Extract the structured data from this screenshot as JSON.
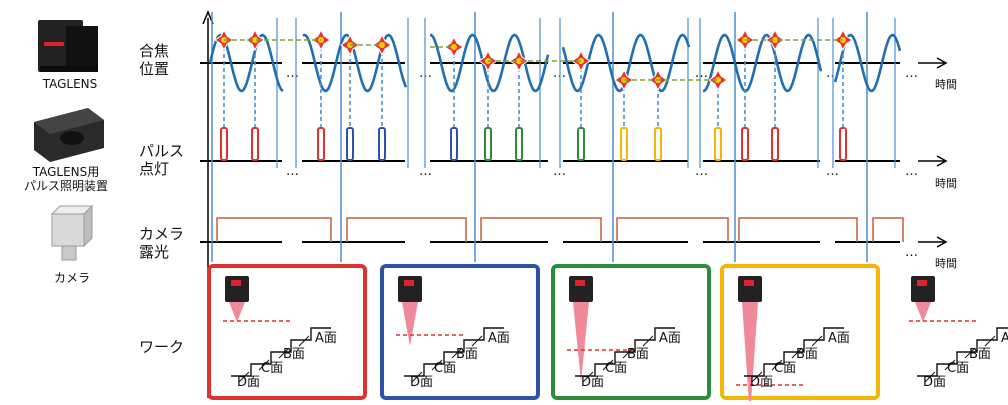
{
  "devices": [
    {
      "label": "TAGLENS",
      "icon": "taglens-lens-icon"
    },
    {
      "label": "TAGLENS用\nパルス照明装置",
      "icon": "pulse-illuminator-icon"
    },
    {
      "label": "カメラ",
      "icon": "camera-icon"
    }
  ],
  "rows": {
    "focus": "合焦\n位置",
    "pulse": "パルス\n点灯",
    "camera": "カメラ\n露光",
    "work": "ワーク"
  },
  "time_label": "時間",
  "ellipsis": "…",
  "colors": {
    "red": "#e03131",
    "blue": "#2f52a8",
    "green": "#2e8b3a",
    "yellow": "#f2b705",
    "sine": "#1f6fb2",
    "exposure": "#c0643a",
    "guide": "#4b8fd1",
    "dash": "#7aa33a"
  },
  "panels": [
    {
      "color": "red",
      "faces": [
        "A面",
        "B面",
        "C面",
        "D面"
      ]
    },
    {
      "color": "blue",
      "faces": [
        "A面",
        "B面",
        "C面",
        "D面"
      ]
    },
    {
      "color": "green",
      "faces": [
        "A面",
        "B面",
        "C面",
        "D面"
      ]
    },
    {
      "color": "yellow",
      "faces": [
        "A面",
        "B面",
        "C面",
        "D面"
      ]
    },
    {
      "color": "none",
      "faces": [
        "A面",
        "B面",
        "C面",
        "D面"
      ]
    }
  ]
}
